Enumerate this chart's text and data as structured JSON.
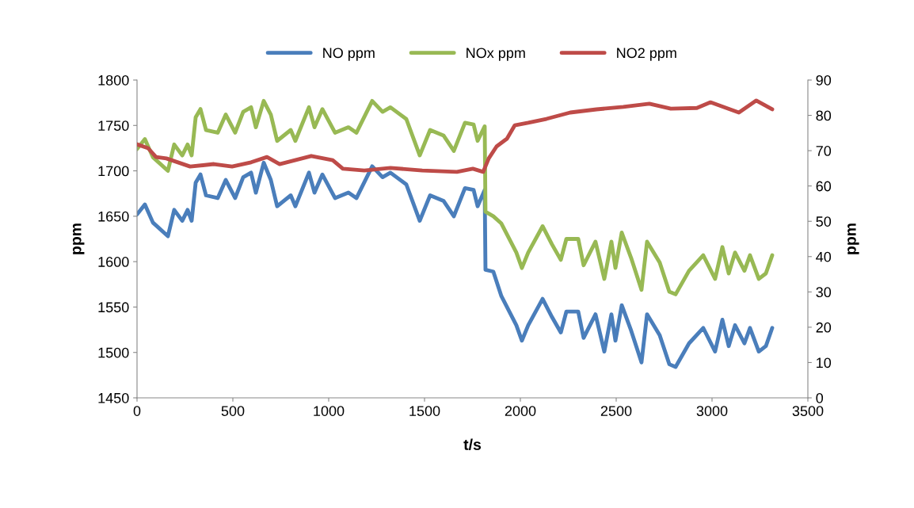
{
  "chart_data": {
    "type": "line",
    "xlabel": "t/s",
    "ylabel": "ppm",
    "y2label": "ppm",
    "xlim": [
      0,
      3500
    ],
    "xticks": [
      0,
      500,
      1000,
      1500,
      2000,
      2500,
      3000,
      3500
    ],
    "ylim": [
      1450,
      1800
    ],
    "yticks": [
      1450,
      1500,
      1550,
      1600,
      1650,
      1700,
      1750,
      1800
    ],
    "y2lim": [
      0,
      90
    ],
    "y2ticks": [
      0,
      10,
      20,
      30,
      40,
      50,
      60,
      70,
      80,
      90
    ],
    "grid": false,
    "legend": "top",
    "marker": "none",
    "line_style": "solid",
    "x": [
      0,
      41,
      83,
      161,
      194,
      236,
      264,
      285,
      306,
      331,
      360,
      421,
      463,
      512,
      554,
      595,
      620,
      661,
      698,
      731,
      802,
      826,
      897,
      926,
      967,
      1033,
      1103,
      1145,
      1227,
      1281,
      1322,
      1405,
      1475,
      1529,
      1599,
      1653,
      1711,
      1756,
      1777,
      1814,
      1818,
      1859,
      1901,
      1979,
      2008,
      2041,
      2116,
      2165,
      2211,
      2240,
      2302,
      2330,
      2392,
      2438,
      2475,
      2496,
      2529,
      2578,
      2632,
      2661,
      2727,
      2777,
      2810,
      2880,
      2954,
      3016,
      3054,
      3087,
      3120,
      3169,
      3198,
      3244,
      3281,
      3314
    ],
    "series": [
      {
        "name": "NO ppm",
        "color": "#4a7ebb",
        "values": [
          1652,
          1663,
          1643,
          1628,
          1657,
          1645,
          1657,
          1645,
          1687,
          1696,
          1673,
          1670,
          1690,
          1670,
          1693,
          1698,
          1676,
          1709,
          1690,
          1661,
          1673,
          1661,
          1698,
          1676,
          1696,
          1670,
          1676,
          1670,
          1705,
          1693,
          1698,
          1685,
          1645,
          1673,
          1667,
          1650,
          1681,
          1679,
          1661,
          1679,
          1591,
          1589,
          1562,
          1530,
          1513,
          1530,
          1559,
          1539,
          1522,
          1545,
          1545,
          1516,
          1542,
          1501,
          1542,
          1513,
          1552,
          1524,
          1489,
          1542,
          1519,
          1487,
          1484,
          1510,
          1527,
          1501,
          1536,
          1507,
          1530,
          1510,
          1527,
          1501,
          1507,
          1527
        ]
      },
      {
        "name": "NOx ppm",
        "color": "#98b954",
        "values": [
          1724,
          1735,
          1715,
          1700,
          1729,
          1717,
          1729,
          1717,
          1759,
          1768,
          1745,
          1742,
          1762,
          1742,
          1765,
          1770,
          1748,
          1777,
          1762,
          1733,
          1745,
          1733,
          1770,
          1748,
          1768,
          1742,
          1748,
          1742,
          1777,
          1765,
          1770,
          1757,
          1717,
          1745,
          1739,
          1722,
          1753,
          1751,
          1733,
          1749,
          1655,
          1650,
          1642,
          1610,
          1593,
          1610,
          1639,
          1619,
          1602,
          1625,
          1625,
          1596,
          1622,
          1581,
          1622,
          1593,
          1632,
          1604,
          1569,
          1622,
          1599,
          1567,
          1564,
          1590,
          1607,
          1581,
          1616,
          1587,
          1610,
          1590,
          1607,
          1581,
          1587,
          1607
        ]
      },
      {
        "name": "NO2 ppm",
        "color": "#be4b48",
        "axis": "y2",
        "x": [
          0,
          58,
          99,
          153,
          277,
          401,
          496,
          595,
          678,
          744,
          909,
          1021,
          1074,
          1186,
          1322,
          1488,
          1669,
          1752,
          1806,
          1835,
          1876,
          1930,
          1971,
          2041,
          2136,
          2260,
          2397,
          2537,
          2673,
          2785,
          2921,
          2992,
          3140,
          3231,
          3314
        ],
        "values": [
          71.8,
          70.7,
          68.2,
          67.8,
          65.5,
          66.2,
          65.5,
          66.7,
          68.2,
          66.2,
          68.5,
          67.3,
          64.9,
          64.4,
          65.1,
          64.4,
          64.0,
          64.9,
          64.0,
          67.8,
          71.2,
          73.4,
          77.2,
          77.9,
          79.0,
          80.8,
          81.7,
          82.4,
          83.3,
          81.9,
          82.1,
          83.7,
          80.8,
          84.2,
          81.7
        ]
      }
    ]
  }
}
